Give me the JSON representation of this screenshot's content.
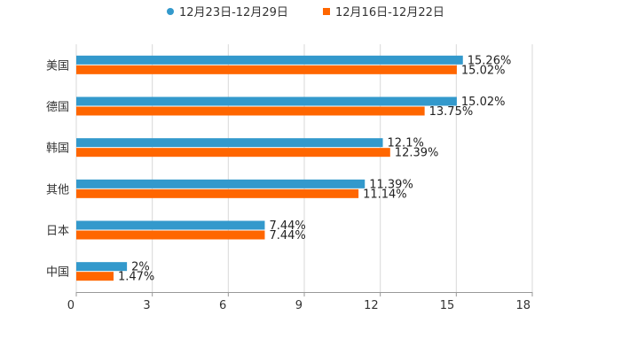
{
  "chart_data": {
    "type": "bar",
    "orientation": "horizontal",
    "title": "",
    "xlabel": "",
    "ylabel": "",
    "categories": [
      "美国",
      "德国",
      "韩国",
      "其他",
      "日本",
      "中国"
    ],
    "series": [
      {
        "name": "12月23日-12月29日",
        "color": "#3399cc",
        "values": [
          15.26,
          15.02,
          12.1,
          11.39,
          7.44,
          2
        ],
        "labels": [
          "15.26%",
          "15.02%",
          "12.1%",
          "11.39%",
          "7.44%",
          "2%"
        ]
      },
      {
        "name": "12月16日-12月22日",
        "color": "#ff6600",
        "values": [
          15.02,
          13.75,
          12.39,
          11.14,
          7.44,
          1.47
        ],
        "labels": [
          "15.02%",
          "13.75%",
          "12.39%",
          "11.14%",
          "7.44%",
          "1.47%"
        ]
      }
    ],
    "xlim": [
      0,
      18
    ],
    "xticks": [
      0,
      3,
      6,
      9,
      12,
      15,
      18
    ],
    "xtick_labels": [
      "0",
      "3",
      "6",
      "9",
      "12",
      "15",
      "18"
    ],
    "grid": "vertical",
    "legend_position": "top-center"
  }
}
